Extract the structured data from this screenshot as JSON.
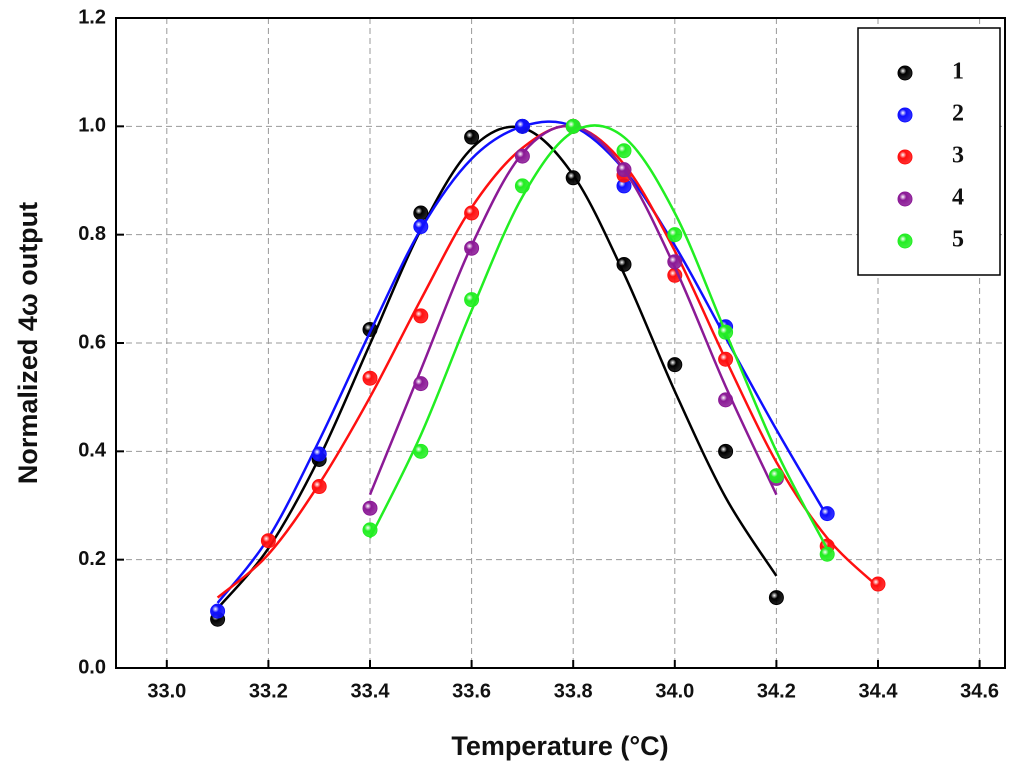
{
  "chart_data": {
    "type": "scatter",
    "xlabel": "Temperature (°C)",
    "ylabel": "Normalized 4ω  output",
    "xlim": [
      32.9,
      34.65
    ],
    "ylim": [
      0,
      1.2
    ],
    "xticks": [
      {
        "value": 33.0,
        "label": "33.0"
      },
      33.2,
      33.4,
      33.6,
      33.8,
      {
        "value": 34.0,
        "label": "34.0"
      },
      34.2,
      34.4,
      34.6
    ],
    "yticks": [
      {
        "value": 0,
        "label": "0.0"
      },
      0.2,
      0.4,
      0.6,
      0.8,
      {
        "value": 1,
        "label": "1.0"
      },
      1.2
    ],
    "grid": true,
    "legend": "upper right",
    "series": [
      {
        "name": "1",
        "color": "#000000",
        "x": [
          33.1,
          33.3,
          33.4,
          33.5,
          33.6,
          33.7,
          33.8,
          33.9,
          34.0,
          34.1,
          34.2
        ],
        "values": [
          0.09,
          0.385,
          0.625,
          0.84,
          0.98,
          1.0,
          0.905,
          0.745,
          0.56,
          0.4,
          0.13
        ],
        "fit_x": [
          33.1,
          33.2,
          33.3,
          33.4,
          33.5,
          33.6,
          33.7,
          33.8,
          33.9,
          34.0,
          34.1,
          34.2
        ],
        "fit_values": [
          0.11,
          0.221,
          0.388,
          0.598,
          0.809,
          0.959,
          0.997,
          0.91,
          0.728,
          0.511,
          0.315,
          0.17
        ]
      },
      {
        "name": "2",
        "color": "#1010ff",
        "x": [
          33.1,
          33.3,
          33.5,
          33.7,
          33.9,
          34.1,
          34.3
        ],
        "values": [
          0.105,
          0.395,
          0.815,
          1.0,
          0.89,
          0.63,
          0.285
        ],
        "fit_x": [
          33.1,
          33.2,
          33.3,
          33.4,
          33.5,
          33.6,
          33.7,
          33.8,
          33.9,
          34.0,
          34.1,
          34.2,
          34.3
        ],
        "fit_values": [
          0.12,
          0.24,
          0.42,
          0.62,
          0.81,
          0.94,
          1.0,
          1.0,
          0.92,
          0.78,
          0.61,
          0.44,
          0.28
        ]
      },
      {
        "name": "3",
        "color": "#ff1010",
        "x": [
          33.2,
          33.3,
          33.4,
          33.5,
          33.6,
          33.8,
          33.9,
          34.0,
          34.1,
          34.3,
          34.4
        ],
        "values": [
          0.235,
          0.335,
          0.535,
          0.65,
          0.84,
          1.0,
          0.91,
          0.725,
          0.57,
          0.225,
          0.155
        ],
        "fit_x": [
          33.1,
          33.2,
          33.3,
          33.4,
          33.5,
          33.6,
          33.7,
          33.8,
          33.9,
          34.0,
          34.1,
          34.2,
          34.3,
          34.4
        ],
        "fit_values": [
          0.13,
          0.21,
          0.34,
          0.5,
          0.68,
          0.85,
          0.96,
          1.0,
          0.93,
          0.77,
          0.57,
          0.38,
          0.24,
          0.15
        ]
      },
      {
        "name": "4",
        "color": "#8b1a96",
        "x": [
          33.4,
          33.5,
          33.6,
          33.7,
          33.8,
          33.9,
          34.0,
          34.1,
          34.2
        ],
        "values": [
          0.295,
          0.525,
          0.775,
          0.945,
          1.0,
          0.92,
          0.75,
          0.495,
          0.35
        ],
        "fit_x": [
          33.4,
          33.5,
          33.6,
          33.7,
          33.8,
          33.9,
          34.0,
          34.1,
          34.2
        ],
        "fit_values": [
          0.32,
          0.55,
          0.78,
          0.95,
          1.0,
          0.92,
          0.74,
          0.52,
          0.32
        ]
      },
      {
        "name": "5",
        "color": "#22ee22",
        "x": [
          33.4,
          33.5,
          33.6,
          33.7,
          33.8,
          33.9,
          34.0,
          34.1,
          34.2,
          34.3
        ],
        "values": [
          0.255,
          0.4,
          0.68,
          0.89,
          1.0,
          0.955,
          0.8,
          0.62,
          0.355,
          0.21
        ],
        "fit_x": [
          33.4,
          33.5,
          33.6,
          33.7,
          33.8,
          33.9,
          34.0,
          34.1,
          34.2,
          34.3
        ],
        "fit_values": [
          0.24,
          0.43,
          0.66,
          0.87,
          0.99,
          0.98,
          0.84,
          0.62,
          0.4,
          0.22
        ]
      }
    ]
  }
}
